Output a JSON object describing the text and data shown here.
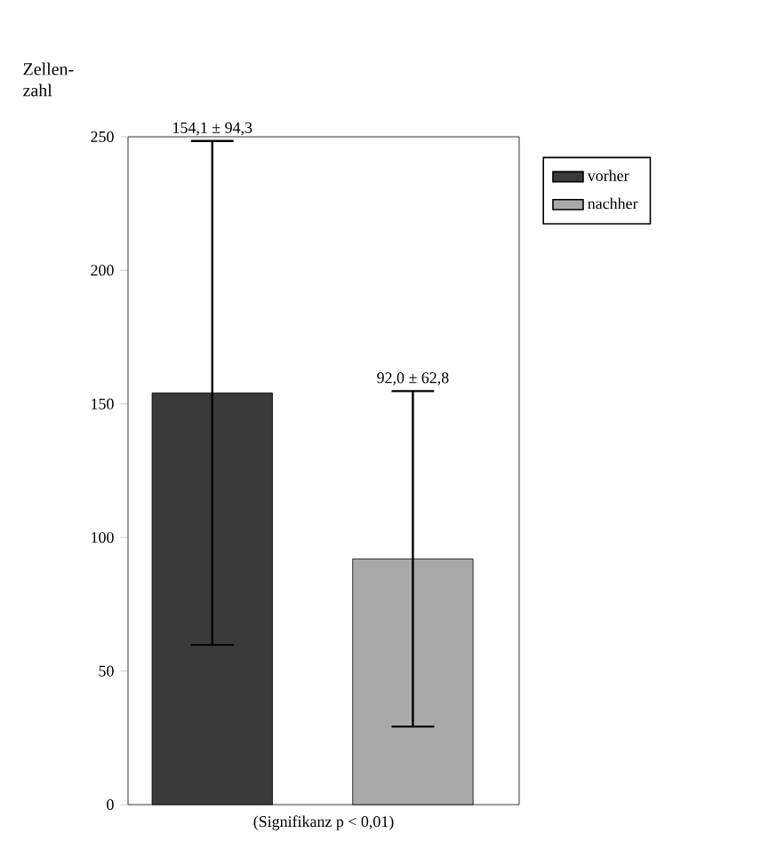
{
  "chart_data": {
    "type": "bar",
    "ylabel": "Zellen-zahl",
    "categories": [
      null
    ],
    "series": [
      {
        "name": "vorher",
        "color": "#3a3a3a",
        "values": [
          154.1
        ],
        "errors": [
          94.3
        ]
      },
      {
        "name": "nachher",
        "color": "#a9a9a9",
        "values": [
          92.0
        ],
        "errors": [
          62.8
        ]
      }
    ],
    "ylim": [
      0,
      250
    ],
    "yticks": [
      0,
      50,
      100,
      150,
      200,
      250
    ],
    "tick_labels": "y",
    "legend": "top right",
    "grid": false,
    "annotations": [
      {
        "text": "154,1 ± 94,3",
        "y": 248.4
      },
      {
        "text": "92,0 ± 62,8",
        "y": 154.8
      },
      "(Signifikanz p < 0,01)"
    ]
  }
}
